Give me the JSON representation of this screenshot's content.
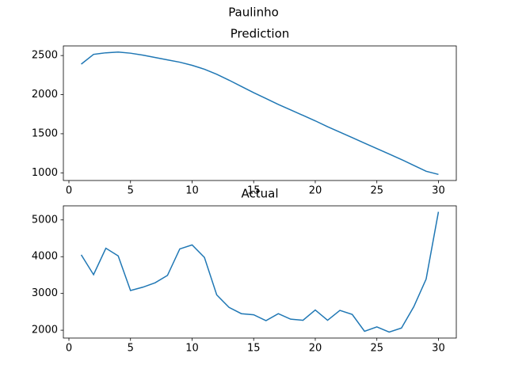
{
  "title": "Paulinho",
  "chart_data": [
    {
      "type": "line",
      "title": "Prediction",
      "color": "#1f77b4",
      "x": [
        1,
        2,
        3,
        4,
        5,
        6,
        7,
        8,
        9,
        10,
        11,
        12,
        13,
        14,
        15,
        16,
        17,
        18,
        19,
        20,
        21,
        22,
        23,
        24,
        25,
        26,
        27,
        28,
        29,
        30
      ],
      "values": [
        2390,
        2515,
        2535,
        2545,
        2530,
        2505,
        2475,
        2445,
        2415,
        2375,
        2325,
        2260,
        2185,
        2105,
        2025,
        1950,
        1875,
        1805,
        1735,
        1665,
        1590,
        1520,
        1450,
        1380,
        1310,
        1240,
        1170,
        1095,
        1020,
        980
      ],
      "xlim": [
        -0.45,
        31.45
      ],
      "xticks": [
        0,
        5,
        10,
        15,
        20,
        25,
        30
      ],
      "ylim": [
        902,
        2623
      ],
      "yticks": [
        1000,
        1500,
        2000,
        2500
      ]
    },
    {
      "type": "line",
      "title": "Actual",
      "color": "#1f77b4",
      "x": [
        1,
        2,
        3,
        4,
        5,
        6,
        7,
        8,
        9,
        10,
        11,
        12,
        13,
        14,
        15,
        16,
        17,
        18,
        19,
        20,
        21,
        22,
        23,
        24,
        25,
        26,
        27,
        28,
        29,
        30
      ],
      "values": [
        4050,
        3510,
        4230,
        4020,
        3080,
        3170,
        3290,
        3490,
        4210,
        4320,
        3980,
        2960,
        2620,
        2450,
        2420,
        2260,
        2450,
        2300,
        2270,
        2550,
        2270,
        2540,
        2430,
        1970,
        2090,
        1950,
        2060,
        2640,
        3390,
        5220
      ],
      "xlim": [
        -0.45,
        31.45
      ],
      "xticks": [
        0,
        5,
        10,
        15,
        20,
        25,
        30
      ],
      "ylim": [
        1787,
        5383
      ],
      "yticks": [
        2000,
        3000,
        4000,
        5000
      ]
    }
  ]
}
